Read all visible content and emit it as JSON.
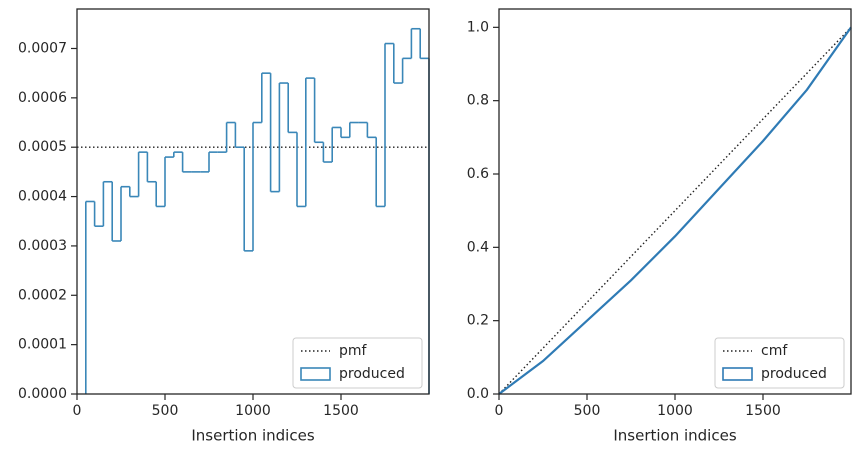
{
  "chart_data": [
    {
      "type": "histogram",
      "xlabel": "Insertion indices",
      "xlim": [
        0,
        2000
      ],
      "xticks": [
        0,
        500,
        1000,
        1500
      ],
      "ylim": [
        0,
        0.00078
      ],
      "yticks": [
        {
          "value": 0,
          "label": "0.0000"
        },
        {
          "value": 0.0001,
          "label": "0.0001"
        },
        {
          "value": 0.0002,
          "label": "0.0002"
        },
        {
          "value": 0.0003,
          "label": "0.0003"
        },
        {
          "value": 0.0004,
          "label": "0.0004"
        },
        {
          "value": 0.0005,
          "label": "0.0005"
        },
        {
          "value": 0.0006,
          "label": "0.0006"
        },
        {
          "value": 0.0007,
          "label": "0.0007"
        }
      ],
      "legend": "lower right",
      "series": [
        {
          "name": "pmf",
          "type": "line",
          "style": "dotted",
          "color": "#222222",
          "x": [
            0,
            2000
          ],
          "values": [
            0.0005,
            0.0005
          ]
        },
        {
          "name": "produced",
          "type": "step",
          "color": "#3a87b8",
          "bins": [
            50,
            100,
            150,
            200,
            250,
            300,
            350,
            400,
            450,
            500,
            550,
            600,
            650,
            700,
            750,
            800,
            850,
            900,
            950,
            1000,
            1050,
            1100,
            1150,
            1200,
            1250,
            1300,
            1350,
            1400,
            1450,
            1500,
            1550,
            1600,
            1650,
            1700,
            1750,
            1800,
            1850,
            1900,
            1950,
            2000
          ],
          "values": [
            0.00039,
            0.00034,
            0.00043,
            0.00031,
            0.00042,
            0.0004,
            0.00049,
            0.00043,
            0.00038,
            0.00048,
            0.00049,
            0.00045,
            0.00045,
            0.00045,
            0.00049,
            0.00049,
            0.00055,
            0.0005,
            0.00029,
            0.00055,
            0.00065,
            0.00041,
            0.00063,
            0.00053,
            0.00038,
            0.00064,
            0.00051,
            0.00047,
            0.00054,
            0.00052,
            0.00055,
            0.00055,
            0.00052,
            0.00038,
            0.00071,
            0.00063,
            0.00068,
            0.00074,
            0.00068
          ]
        }
      ]
    },
    {
      "type": "line",
      "xlabel": "Insertion indices",
      "xlim": [
        0,
        2000
      ],
      "xticks": [
        0,
        500,
        1000,
        1500
      ],
      "ylim": [
        0,
        1.05
      ],
      "yticks": [
        {
          "value": 0,
          "label": "0.0"
        },
        0.2,
        0.4,
        0.6,
        0.8,
        {
          "value": 1,
          "label": "1.0"
        }
      ],
      "legend": "lower right",
      "series": [
        {
          "name": "cmf",
          "type": "line",
          "style": "dotted",
          "color": "#222222",
          "x": [
            0,
            2000
          ],
          "values": [
            0,
            1
          ]
        },
        {
          "name": "produced",
          "type": "line",
          "style": "solid",
          "color": "#2f7bb5",
          "x": [
            0,
            250,
            500,
            750,
            1000,
            1250,
            1500,
            1750,
            2000
          ],
          "values": [
            0,
            0.09,
            0.2,
            0.31,
            0.43,
            0.56,
            0.69,
            0.83,
            1.0
          ]
        }
      ]
    }
  ]
}
